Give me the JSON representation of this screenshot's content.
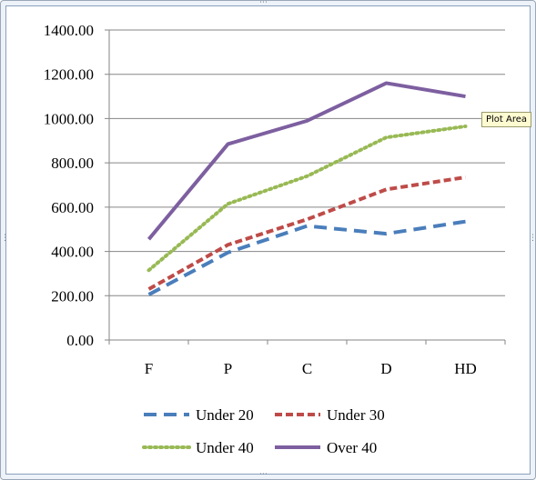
{
  "chart_data": {
    "type": "line",
    "categories": [
      "F",
      "P",
      "C",
      "D",
      "HD"
    ],
    "ylim": [
      0,
      1400
    ],
    "yticks": [
      "0.00",
      "200.00",
      "400.00",
      "600.00",
      "800.00",
      "1000.00",
      "1200.00",
      "1400.00"
    ],
    "grid": true,
    "legend_position": "bottom",
    "series": [
      {
        "name": "Under 20",
        "values": [
          205,
          395,
          515,
          480,
          535
        ],
        "color": "#4a7ebb",
        "style": "dashed"
      },
      {
        "name": "Under 30",
        "values": [
          230,
          430,
          545,
          680,
          735
        ],
        "color": "#be4b48",
        "style": "dashed"
      },
      {
        "name": "Under 40",
        "values": [
          315,
          615,
          740,
          915,
          965
        ],
        "color": "#98b954",
        "style": "dotted"
      },
      {
        "name": "Over 40",
        "values": [
          455,
          885,
          990,
          1160,
          1100
        ],
        "color": "#7d5fa0",
        "style": "solid"
      }
    ]
  },
  "tooltip": {
    "text": "Plot Area"
  }
}
